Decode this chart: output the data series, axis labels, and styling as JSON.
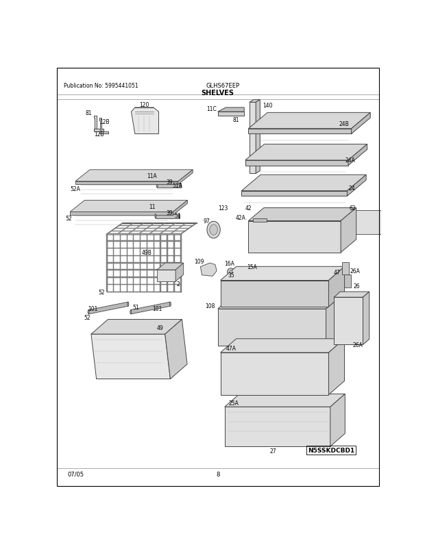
{
  "title": "SHELVES",
  "pub_no": "Publication No: 5995441051",
  "model": "GLHS67EEP",
  "date": "07/05",
  "page": "8",
  "watermark": "N5SSKDCBD1",
  "bg_color": "#ffffff",
  "border_color": "#000000"
}
